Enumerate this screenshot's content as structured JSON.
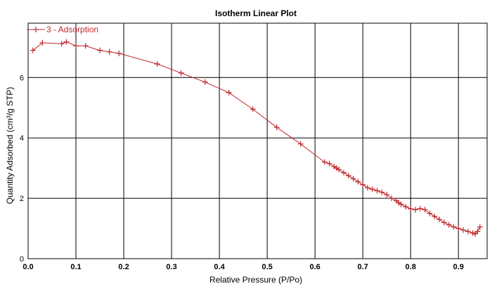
{
  "colors": {
    "series": "#c0282d",
    "grid": "#000000",
    "background": "#ffffff"
  },
  "chart_data": {
    "type": "line",
    "title": "Isotherm Linear Plot",
    "xlabel": "Relative Pressure (P/Po)",
    "ylabel": "Quantity Adsorbed (cm³/g STP)",
    "xlim": [
      0.0,
      0.96
    ],
    "ylim": [
      0,
      7.8
    ],
    "xticks": [
      "0.0",
      "0.1",
      "0.2",
      "0.3",
      "0.4",
      "0.5",
      "0.6",
      "0.7",
      "0.8",
      "0.9"
    ],
    "xtick_values": [
      0.0,
      0.1,
      0.2,
      0.3,
      0.4,
      0.5,
      0.6,
      0.7,
      0.8,
      0.9
    ],
    "yticks": [
      "0",
      "2",
      "4",
      "6"
    ],
    "ytick_values": [
      0,
      2,
      4,
      6
    ],
    "grid": true,
    "legend_position": "top-left",
    "series": [
      {
        "name": "3 - Adsorption",
        "marker": "plus",
        "x": [
          0.01,
          0.03,
          0.07,
          0.08,
          0.1,
          0.12,
          0.15,
          0.17,
          0.19,
          0.27,
          0.32,
          0.37,
          0.42,
          0.47,
          0.52,
          0.57,
          0.62,
          0.63,
          0.64,
          0.645,
          0.65,
          0.66,
          0.67,
          0.68,
          0.69,
          0.7,
          0.71,
          0.72,
          0.73,
          0.74,
          0.75,
          0.76,
          0.77,
          0.775,
          0.78,
          0.79,
          0.8,
          0.81,
          0.82,
          0.83,
          0.84,
          0.85,
          0.86,
          0.87,
          0.88,
          0.89,
          0.9,
          0.91,
          0.92,
          0.93,
          0.935,
          0.94,
          0.945
        ],
        "y": [
          6.9,
          7.15,
          7.12,
          7.18,
          7.05,
          7.05,
          6.9,
          6.85,
          6.8,
          6.45,
          6.15,
          5.85,
          5.5,
          4.95,
          4.35,
          3.8,
          3.2,
          3.15,
          3.05,
          3.0,
          2.95,
          2.85,
          2.75,
          2.65,
          2.55,
          2.45,
          2.35,
          2.3,
          2.25,
          2.2,
          2.12,
          2.0,
          1.92,
          1.85,
          1.8,
          1.72,
          1.65,
          1.62,
          1.66,
          1.62,
          1.5,
          1.4,
          1.3,
          1.2,
          1.12,
          1.05,
          1.0,
          0.95,
          0.9,
          0.85,
          0.82,
          0.9,
          1.05
        ]
      }
    ]
  }
}
